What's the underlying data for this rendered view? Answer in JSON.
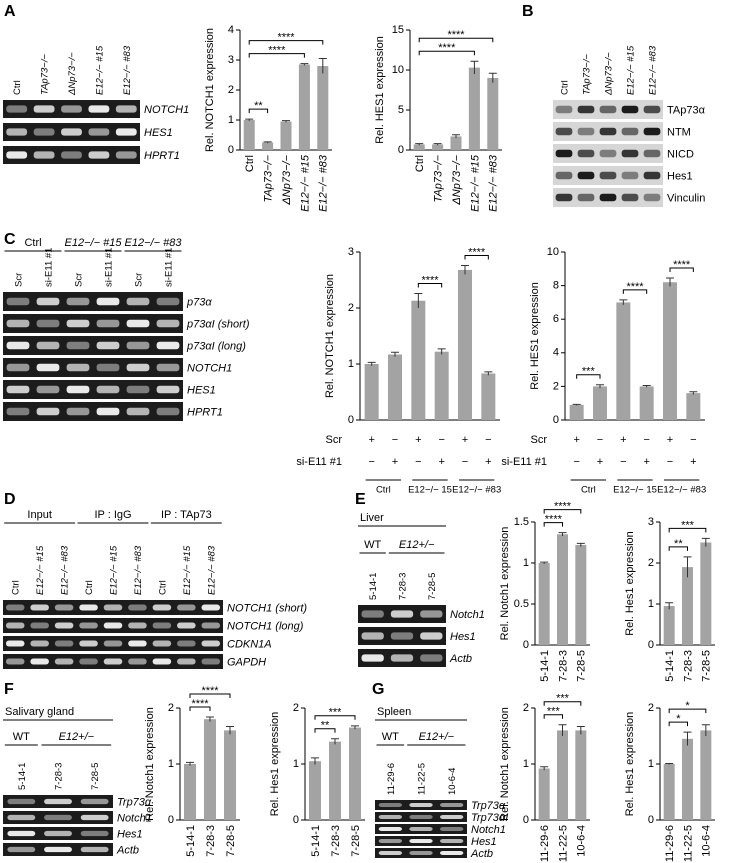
{
  "panels": [
    {
      "letter": "A",
      "gel": {
        "groups": [
          {
            "lanes": [
              "Ctrl",
              "TAp73−/−",
              "ΔNp73−/−",
              "E12−/− #15",
              "E12−/− #83"
            ]
          }
        ],
        "rows": [
          "NOTCH1",
          "HES1",
          "HPRT1"
        ]
      },
      "charts": [
        {
          "type": "bar",
          "ylabel": "Rel. NOTCH1 expression",
          "categories": [
            "Ctrl",
            "TAp73−/−",
            "ΔNp73−/−",
            "E12−/− #15",
            "E12−/− #83"
          ],
          "values": [
            1.0,
            0.25,
            0.95,
            2.85,
            2.8
          ],
          "errors": [
            0.03,
            0.02,
            0.03,
            0.03,
            0.25
          ],
          "ylim": [
            0,
            4
          ],
          "yticks": [
            0,
            1,
            2,
            3,
            4
          ],
          "color": "#a3a3a3",
          "brackets": [
            {
              "pair": [
                0,
                1
              ],
              "label": "**"
            },
            {
              "pair": [
                0,
                3
              ],
              "label": "****"
            },
            {
              "pair": [
                0,
                4
              ],
              "label": "****"
            }
          ]
        },
        {
          "type": "bar",
          "ylabel": "Rel. HES1 expression",
          "categories": [
            "Ctrl",
            "TAp73−/−",
            "ΔNp73−/−",
            "E12−/− #15",
            "E12−/− #83"
          ],
          "values": [
            0.7,
            0.7,
            1.7,
            10.3,
            9.0
          ],
          "errors": [
            0.1,
            0.1,
            0.2,
            0.8,
            0.6
          ],
          "ylim": [
            0,
            15
          ],
          "yticks": [
            0,
            5,
            10,
            15
          ],
          "color": "#a3a3a3",
          "brackets": [
            {
              "pair": [
                0,
                3
              ],
              "label": "****"
            },
            {
              "pair": [
                0,
                4
              ],
              "label": "****"
            }
          ]
        }
      ]
    },
    {
      "letter": "B",
      "gel": {
        "groups": [
          {
            "lanes": [
              "Ctrl",
              "TAp73−/−",
              "ΔNp73−/−",
              "E12−/− #15",
              "E12−/− #83"
            ]
          }
        ],
        "rows": [
          "TAp73α",
          "NTM",
          "NICD",
          "Hes1",
          "Vinculin"
        ]
      },
      "charts": []
    },
    {
      "letter": "C",
      "gel": {
        "groups": [
          {
            "label": "Ctrl",
            "lanes": [
              "Scr",
              "si-E11 #1"
            ]
          },
          {
            "label": "E12−/− #15",
            "lanes": [
              "Scr",
              "si-E11 #1"
            ]
          },
          {
            "label": "E12−/− #83",
            "lanes": [
              "Scr",
              "si-E11 #1"
            ]
          }
        ],
        "rows": [
          "p73α",
          "p73αI (short)",
          "p73αI (long)",
          "NOTCH1",
          "HES1",
          "HPRT1"
        ]
      },
      "charts": [
        {
          "type": "bar",
          "ylabel": "Rel. NOTCH1 expression",
          "values": [
            1.0,
            1.17,
            2.13,
            1.22,
            2.68,
            0.83
          ],
          "errors": [
            0.03,
            0.04,
            0.13,
            0.05,
            0.08,
            0.03
          ],
          "ylim": [
            0,
            3
          ],
          "yticks": [
            0,
            1,
            2,
            3
          ],
          "color": "#a3a3a3",
          "brackets": [
            {
              "pair": [
                2,
                3
              ],
              "label": "****"
            },
            {
              "pair": [
                4,
                5
              ],
              "label": "****"
            }
          ],
          "conditions": {
            "rows": [
              {
                "label": "Scr",
                "signs": [
                  "+",
                  "−",
                  "+",
                  "−",
                  "+",
                  "−"
                ]
              },
              {
                "label": "si-E11 #1",
                "signs": [
                  "−",
                  "+",
                  "−",
                  "+",
                  "−",
                  "+"
                ]
              }
            ],
            "groups": [
              "Ctrl",
              "E12−/− 15",
              "E12−/− #83"
            ]
          }
        },
        {
          "type": "bar",
          "ylabel": "Rel. HES1 expression",
          "values": [
            0.9,
            2.0,
            7.0,
            2.0,
            8.2,
            1.6
          ],
          "errors": [
            0.03,
            0.1,
            0.15,
            0.05,
            0.25,
            0.08
          ],
          "ylim": [
            0,
            10
          ],
          "yticks": [
            0,
            2,
            4,
            6,
            8,
            10
          ],
          "color": "#a3a3a3",
          "brackets": [
            {
              "pair": [
                0,
                1
              ],
              "label": "***"
            },
            {
              "pair": [
                2,
                3
              ],
              "label": "****"
            },
            {
              "pair": [
                4,
                5
              ],
              "label": "****"
            }
          ],
          "conditions": {
            "rows": [
              {
                "label": "Scr",
                "signs": [
                  "+",
                  "−",
                  "+",
                  "−",
                  "+",
                  "−"
                ]
              },
              {
                "label": "si-E11 #1",
                "signs": [
                  "−",
                  "+",
                  "−",
                  "+",
                  "−",
                  "+"
                ]
              }
            ],
            "groups": [
              "Ctrl",
              "E12−/− 15",
              "E12−/− #83"
            ]
          }
        }
      ]
    },
    {
      "letter": "D",
      "gel": {
        "groups": [
          {
            "label": "Input",
            "lanes": [
              "Ctrl",
              "E12−/− #15",
              "E12−/− #83"
            ]
          },
          {
            "label": "IP : IgG",
            "lanes": [
              "Ctrl",
              "E12−/− #15",
              "E12−/− #83"
            ]
          },
          {
            "label": "IP : TAp73",
            "lanes": [
              "Ctrl",
              "E12−/− #15",
              "E12−/− #83"
            ]
          }
        ],
        "rows": [
          "NOTCH1 (short)",
          "NOTCH1 (long)",
          "CDKN1A",
          "GAPDH"
        ]
      },
      "charts": []
    },
    {
      "letter": "E",
      "gel": {
        "tissue": "Liver",
        "groups": [
          {
            "label": "WT",
            "lanes": [
              "5-14-1"
            ]
          },
          {
            "label": "E12+/−",
            "lanes": [
              "7-28-3",
              "7-28-5"
            ]
          }
        ],
        "rows": [
          "Notch1",
          "Hes1",
          "Actb"
        ]
      },
      "charts": [
        {
          "type": "bar",
          "ylabel": "Rel. Notch1 expression",
          "categories": [
            "5-14-1",
            "7-28-3",
            "7-28-5"
          ],
          "values": [
            1.0,
            1.35,
            1.22
          ],
          "errors": [
            0.01,
            0.02,
            0.02
          ],
          "ylim": [
            0,
            1.5
          ],
          "yticks": [
            0,
            0.5,
            1,
            1.5
          ],
          "color": "#a3a3a3",
          "brackets": [
            {
              "pair": [
                0,
                1
              ],
              "label": "****"
            },
            {
              "pair": [
                0,
                2
              ],
              "label": "****"
            }
          ]
        },
        {
          "type": "bar",
          "ylabel": "Rel. Hes1 expression",
          "categories": [
            "5-14-1",
            "7-28-3",
            "7-28-5"
          ],
          "values": [
            0.95,
            1.9,
            2.5
          ],
          "errors": [
            0.08,
            0.25,
            0.1
          ],
          "ylim": [
            0,
            3
          ],
          "yticks": [
            0,
            1,
            2,
            3
          ],
          "color": "#a3a3a3",
          "brackets": [
            {
              "pair": [
                0,
                1
              ],
              "label": "**"
            },
            {
              "pair": [
                0,
                2
              ],
              "label": "***"
            }
          ]
        }
      ]
    },
    {
      "letter": "F",
      "gel": {
        "tissue": "Salivary gland",
        "groups": [
          {
            "label": "WT",
            "lanes": [
              "5-14-1"
            ]
          },
          {
            "label": "E12+/−",
            "lanes": [
              "7-28-3",
              "7-28-5"
            ]
          }
        ],
        "rows": [
          "Trp73α",
          "Notch1",
          "Hes1",
          "Actb"
        ]
      },
      "charts": [
        {
          "type": "bar",
          "ylabel": "Rel. Notch1 expression",
          "categories": [
            "5-14-1",
            "7-28-3",
            "7-28-5"
          ],
          "values": [
            1.0,
            1.8,
            1.6
          ],
          "errors": [
            0.03,
            0.04,
            0.07
          ],
          "ylim": [
            0,
            2
          ],
          "yticks": [
            0,
            1,
            2
          ],
          "color": "#a3a3a3",
          "brackets": [
            {
              "pair": [
                0,
                1
              ],
              "label": "****"
            },
            {
              "pair": [
                0,
                2
              ],
              "label": "****"
            }
          ]
        },
        {
          "type": "bar",
          "ylabel": "Rel. Hes1 expression",
          "categories": [
            "5-14-1",
            "7-28-3",
            "7-28-5"
          ],
          "values": [
            1.05,
            1.4,
            1.65
          ],
          "errors": [
            0.06,
            0.05,
            0.03
          ],
          "ylim": [
            0,
            2
          ],
          "yticks": [
            0,
            1,
            2
          ],
          "color": "#a3a3a3",
          "brackets": [
            {
              "pair": [
                0,
                1
              ],
              "label": "**"
            },
            {
              "pair": [
                0,
                2
              ],
              "label": "***"
            }
          ]
        }
      ]
    },
    {
      "letter": "G",
      "gel": {
        "tissue": "Spleen",
        "groups": [
          {
            "label": "WT",
            "lanes": [
              "11-29-6"
            ]
          },
          {
            "label": "E12+/−",
            "lanes": [
              "11-22-5",
              "10-6-4"
            ]
          }
        ],
        "rows": [
          "Trp73α",
          "Trp73αI",
          "Notch1",
          "Hes1",
          "Actb"
        ]
      },
      "charts": [
        {
          "type": "bar",
          "ylabel": "Rel. Notch1 expression",
          "categories": [
            "11-29-6",
            "11-22-5",
            "10-6-4"
          ],
          "values": [
            0.92,
            1.6,
            1.6
          ],
          "errors": [
            0.03,
            0.1,
            0.07
          ],
          "ylim": [
            0,
            2
          ],
          "yticks": [
            0,
            1,
            2
          ],
          "color": "#a3a3a3",
          "brackets": [
            {
              "pair": [
                0,
                1
              ],
              "label": "***"
            },
            {
              "pair": [
                0,
                2
              ],
              "label": "***"
            }
          ]
        },
        {
          "type": "bar",
          "ylabel": "Rel. Hes1 expression",
          "categories": [
            "11-29-6",
            "11-22-5",
            "10-6-4"
          ],
          "values": [
            1.0,
            1.45,
            1.6
          ],
          "errors": [
            0.01,
            0.12,
            0.1
          ],
          "ylim": [
            0,
            2
          ],
          "yticks": [
            0,
            1,
            2
          ],
          "color": "#a3a3a3",
          "brackets": [
            {
              "pair": [
                0,
                1
              ],
              "label": "*"
            },
            {
              "pair": [
                0,
                2
              ],
              "label": "*"
            }
          ]
        }
      ]
    }
  ]
}
